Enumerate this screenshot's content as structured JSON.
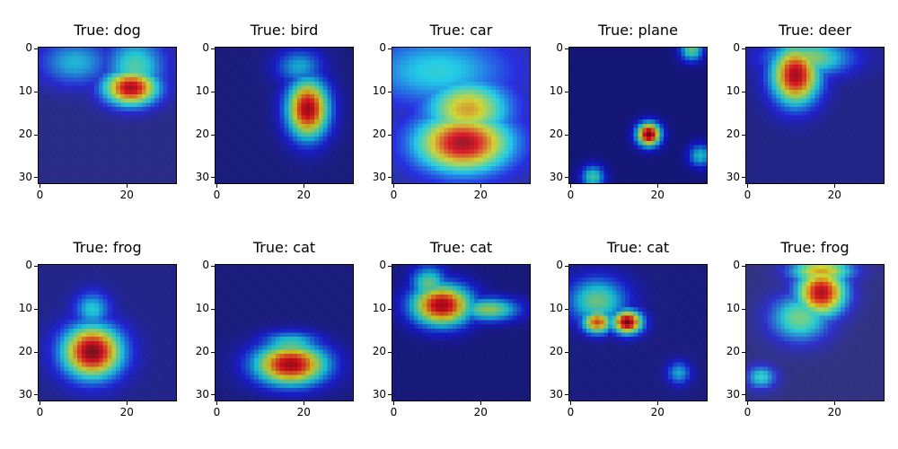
{
  "figure": {
    "background": "#ffffff"
  },
  "chart_data": [
    {
      "type": "heatmap",
      "title": "True: dog",
      "xlim": [
        0,
        31
      ],
      "ylim": [
        31,
        0
      ],
      "xticks": [
        "0",
        "20"
      ],
      "yticks": [
        "0",
        "10",
        "20",
        "30"
      ],
      "base_color": "#5a5f8a",
      "blobs": [
        {
          "x": 21,
          "y": 9,
          "sx": 4.5,
          "sy": 3,
          "level": 0.95
        },
        {
          "x": 22,
          "y": 4,
          "sx": 5,
          "sy": 5,
          "level": 0.45
        },
        {
          "x": 8,
          "y": 3,
          "sx": 6,
          "sy": 4,
          "level": 0.35
        }
      ]
    },
    {
      "type": "heatmap",
      "title": "True: bird",
      "xlim": [
        0,
        31
      ],
      "ylim": [
        31,
        0
      ],
      "xticks": [
        "0",
        "20"
      ],
      "yticks": [
        "0",
        "10",
        "20",
        "30"
      ],
      "base_color": "#3a3f75",
      "blobs": [
        {
          "x": 21,
          "y": 14,
          "sx": 3.5,
          "sy": 5,
          "level": 0.95
        },
        {
          "x": 19,
          "y": 4,
          "sx": 4,
          "sy": 3,
          "level": 0.35
        }
      ]
    },
    {
      "type": "heatmap",
      "title": "True: car",
      "xlim": [
        0,
        31
      ],
      "ylim": [
        31,
        0
      ],
      "xticks": [
        "0",
        "20"
      ],
      "yticks": [
        "0",
        "10",
        "20",
        "30"
      ],
      "base_color": "#5e6fb5",
      "blobs": [
        {
          "x": 16,
          "y": 22,
          "sx": 8,
          "sy": 5,
          "level": 0.95
        },
        {
          "x": 17,
          "y": 14,
          "sx": 7,
          "sy": 5,
          "level": 0.7
        },
        {
          "x": 10,
          "y": 5,
          "sx": 12,
          "sy": 6,
          "level": 0.4
        }
      ]
    },
    {
      "type": "heatmap",
      "title": "True: plane",
      "xlim": [
        0,
        31
      ],
      "ylim": [
        31,
        0
      ],
      "xticks": [
        "0",
        "20"
      ],
      "yticks": [
        "0",
        "10",
        "20",
        "30"
      ],
      "base_color": "#2a2f66",
      "blobs": [
        {
          "x": 18,
          "y": 20,
          "sx": 2,
          "sy": 2,
          "level": 1.0
        },
        {
          "x": 28,
          "y": 0,
          "sx": 2,
          "sy": 2,
          "level": 0.5
        },
        {
          "x": 30,
          "y": 25,
          "sx": 2,
          "sy": 2,
          "level": 0.4
        },
        {
          "x": 5,
          "y": 30,
          "sx": 2,
          "sy": 2,
          "level": 0.45
        }
      ]
    },
    {
      "type": "heatmap",
      "title": "True: deer",
      "xlim": [
        0,
        31
      ],
      "ylim": [
        31,
        0
      ],
      "xticks": [
        "0",
        "20"
      ],
      "yticks": [
        "0",
        "10",
        "20",
        "30"
      ],
      "base_color": "#4a4f8a",
      "blobs": [
        {
          "x": 11,
          "y": 6,
          "sx": 4,
          "sy": 5,
          "level": 0.95
        },
        {
          "x": 14,
          "y": 2,
          "sx": 7,
          "sy": 3,
          "level": 0.55
        }
      ]
    },
    {
      "type": "heatmap",
      "title": "True: frog",
      "xlim": [
        0,
        31
      ],
      "ylim": [
        31,
        0
      ],
      "xticks": [
        "0",
        "20"
      ],
      "yticks": [
        "0",
        "10",
        "20",
        "30"
      ],
      "base_color": "#4a5090",
      "blobs": [
        {
          "x": 12,
          "y": 20,
          "sx": 5,
          "sy": 4.5,
          "level": 1.0
        },
        {
          "x": 12,
          "y": 10,
          "sx": 3,
          "sy": 3,
          "level": 0.4
        }
      ]
    },
    {
      "type": "heatmap",
      "title": "True: cat",
      "xlim": [
        0,
        31
      ],
      "ylim": [
        31,
        0
      ],
      "xticks": [
        "0",
        "20"
      ],
      "yticks": [
        "0",
        "10",
        "20",
        "30"
      ],
      "base_color": "#3a3f75",
      "blobs": [
        {
          "x": 17,
          "y": 23,
          "sx": 6,
          "sy": 3.5,
          "level": 0.95
        },
        {
          "x": 17,
          "y": 18,
          "sx": 5,
          "sy": 2,
          "level": 0.45
        }
      ]
    },
    {
      "type": "heatmap",
      "title": "True: cat",
      "xlim": [
        0,
        31
      ],
      "ylim": [
        31,
        0
      ],
      "xticks": [
        "0",
        "20"
      ],
      "yticks": [
        "0",
        "10",
        "20",
        "30"
      ],
      "base_color": "#33386e",
      "blobs": [
        {
          "x": 11,
          "y": 9,
          "sx": 5,
          "sy": 3.5,
          "level": 0.95
        },
        {
          "x": 22,
          "y": 10,
          "sx": 5,
          "sy": 2,
          "level": 0.55
        },
        {
          "x": 8,
          "y": 4,
          "sx": 3,
          "sy": 3,
          "level": 0.5
        }
      ]
    },
    {
      "type": "heatmap",
      "title": "True: cat",
      "xlim": [
        0,
        31
      ],
      "ylim": [
        31,
        0
      ],
      "xticks": [
        "0",
        "20"
      ],
      "yticks": [
        "0",
        "10",
        "20",
        "30"
      ],
      "base_color": "#3a3f7a",
      "blobs": [
        {
          "x": 13,
          "y": 13,
          "sx": 2.5,
          "sy": 2,
          "level": 1.0
        },
        {
          "x": 6,
          "y": 13,
          "sx": 2.5,
          "sy": 2,
          "level": 0.8
        },
        {
          "x": 6,
          "y": 8,
          "sx": 5,
          "sy": 4,
          "level": 0.5
        },
        {
          "x": 25,
          "y": 25,
          "sx": 2,
          "sy": 2,
          "level": 0.35
        }
      ]
    },
    {
      "type": "heatmap",
      "title": "True: frog",
      "xlim": [
        0,
        31
      ],
      "ylim": [
        31,
        0
      ],
      "xticks": [
        "0",
        "20"
      ],
      "yticks": [
        "0",
        "10",
        "20",
        "30"
      ],
      "base_color": "#6a6e80",
      "blobs": [
        {
          "x": 17,
          "y": 6,
          "sx": 4,
          "sy": 4,
          "level": 0.95
        },
        {
          "x": 17,
          "y": 1,
          "sx": 5,
          "sy": 2,
          "level": 0.7
        },
        {
          "x": 12,
          "y": 12,
          "sx": 5,
          "sy": 4,
          "level": 0.5
        },
        {
          "x": 3,
          "y": 26,
          "sx": 2.5,
          "sy": 2,
          "level": 0.4
        }
      ]
    }
  ]
}
